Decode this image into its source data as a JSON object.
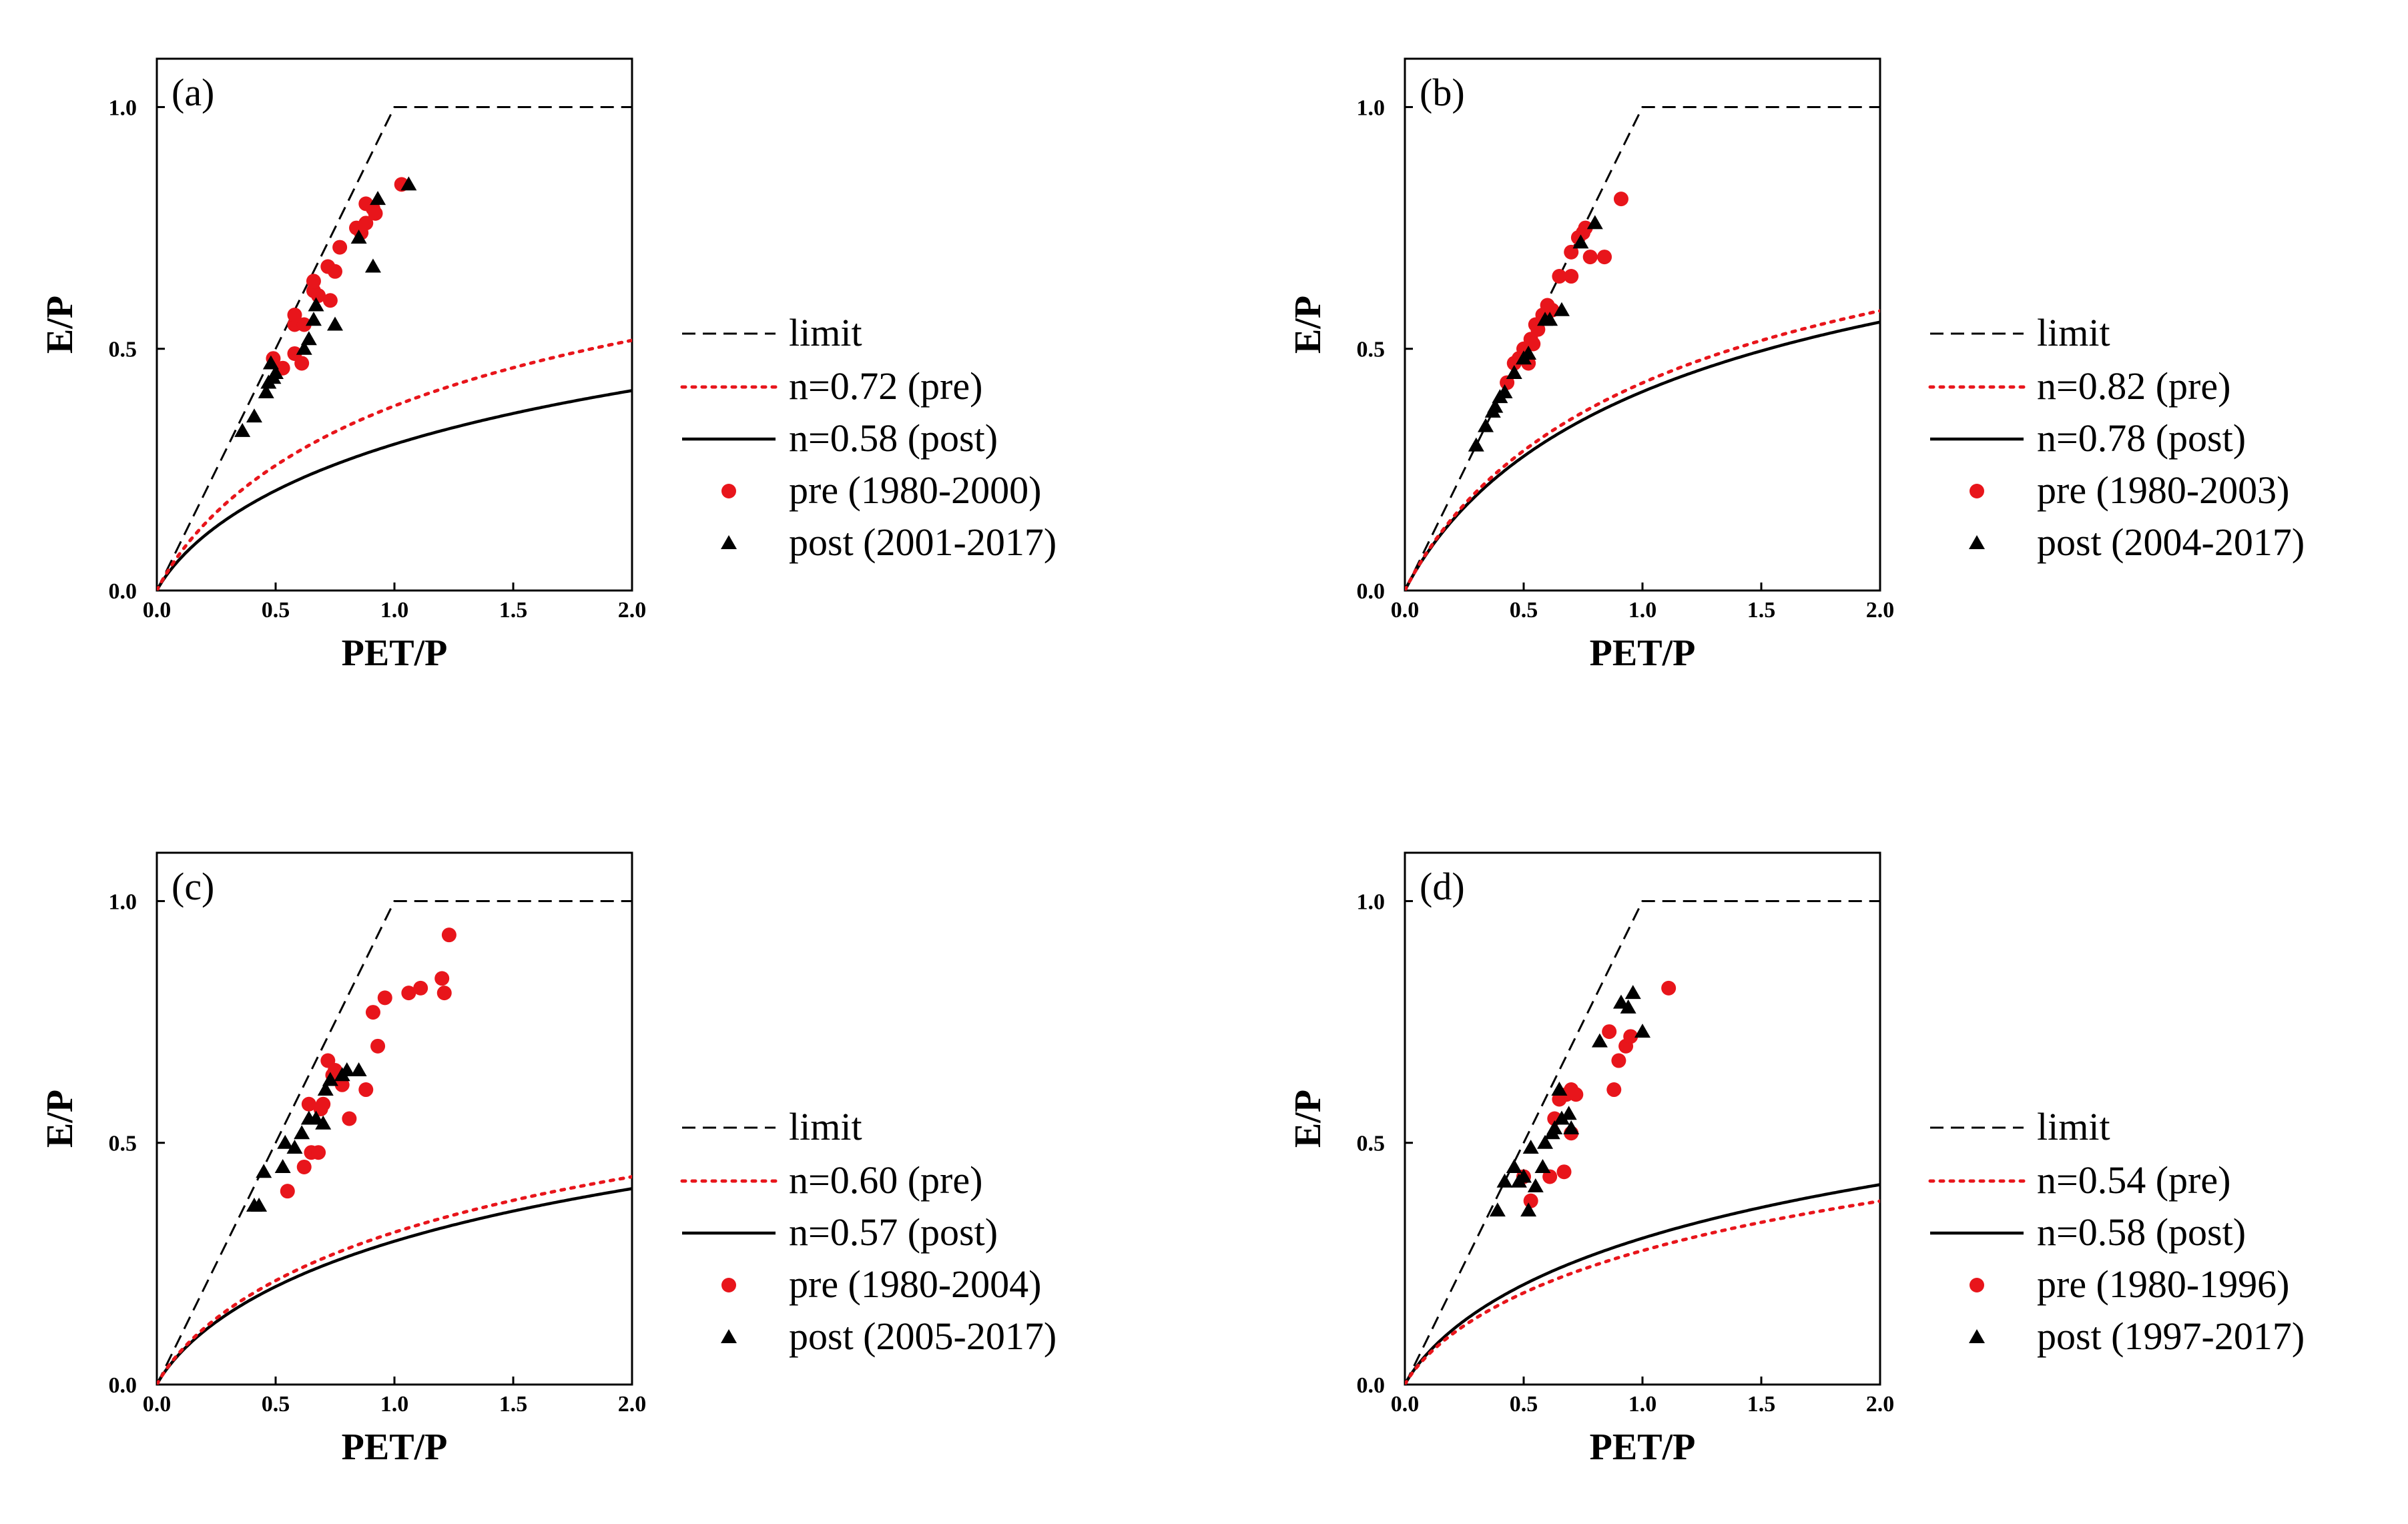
{
  "chart_data": [
    {
      "type": "scatter",
      "panel": "(a)",
      "xlabel": "PET/P",
      "ylabel": "E/P",
      "xlim": [
        0,
        2.0
      ],
      "ylim": [
        0,
        1.1
      ],
      "xticks": [
        "0.0",
        "0.5",
        "1.0",
        "1.5",
        "2.0"
      ],
      "yticks": [
        "0.0",
        "0.5",
        "1.0"
      ],
      "legend_position": "lower-right",
      "legend": {
        "limit": "limit",
        "pre_curve": "n=0.72 (pre)",
        "post_curve": "n=0.58 (post)",
        "pre_points": "pre (1980-2000)",
        "post_points": "post (2001-2017)"
      },
      "curves": {
        "pre_n": 0.72,
        "post_n": 0.58
      },
      "pre": [
        [
          0.49,
          0.48
        ],
        [
          0.53,
          0.46
        ],
        [
          0.58,
          0.55
        ],
        [
          0.58,
          0.57
        ],
        [
          0.58,
          0.49
        ],
        [
          0.61,
          0.47
        ],
        [
          0.62,
          0.55
        ],
        [
          0.66,
          0.62
        ],
        [
          0.66,
          0.64
        ],
        [
          0.68,
          0.61
        ],
        [
          0.72,
          0.67
        ],
        [
          0.73,
          0.6
        ],
        [
          0.75,
          0.66
        ],
        [
          0.77,
          0.71
        ],
        [
          0.84,
          0.75
        ],
        [
          0.86,
          0.74
        ],
        [
          0.88,
          0.76
        ],
        [
          0.88,
          0.8
        ],
        [
          0.91,
          0.79
        ],
        [
          0.92,
          0.78
        ],
        [
          1.03,
          0.84
        ]
      ],
      "post": [
        [
          0.36,
          0.33
        ],
        [
          0.41,
          0.36
        ],
        [
          0.46,
          0.41
        ],
        [
          0.47,
          0.43
        ],
        [
          0.48,
          0.47
        ],
        [
          0.49,
          0.44
        ],
        [
          0.5,
          0.45
        ],
        [
          0.62,
          0.5
        ],
        [
          0.64,
          0.52
        ],
        [
          0.66,
          0.56
        ],
        [
          0.67,
          0.59
        ],
        [
          0.75,
          0.55
        ],
        [
          0.85,
          0.73
        ],
        [
          0.91,
          0.67
        ],
        [
          0.93,
          0.81
        ],
        [
          1.06,
          0.84
        ]
      ]
    },
    {
      "type": "scatter",
      "panel": "(b)",
      "xlabel": "PET/P",
      "ylabel": "E/P",
      "xlim": [
        0,
        2.0
      ],
      "ylim": [
        0,
        1.1
      ],
      "xticks": [
        "0.0",
        "0.5",
        "1.0",
        "1.5",
        "2.0"
      ],
      "yticks": [
        "0.0",
        "0.5",
        "1.0"
      ],
      "legend_position": "lower-right",
      "legend": {
        "limit": "limit",
        "pre_curve": "n=0.82 (pre)",
        "post_curve": "n=0.78 (post)",
        "pre_points": "pre (1980-2003)",
        "post_points": "post (2004-2017)"
      },
      "curves": {
        "pre_n": 0.82,
        "post_n": 0.78
      },
      "pre": [
        [
          0.43,
          0.43
        ],
        [
          0.46,
          0.47
        ],
        [
          0.48,
          0.48
        ],
        [
          0.5,
          0.5
        ],
        [
          0.52,
          0.47
        ],
        [
          0.53,
          0.52
        ],
        [
          0.54,
          0.51
        ],
        [
          0.55,
          0.55
        ],
        [
          0.56,
          0.54
        ],
        [
          0.58,
          0.57
        ],
        [
          0.6,
          0.59
        ],
        [
          0.62,
          0.58
        ],
        [
          0.65,
          0.65
        ],
        [
          0.7,
          0.65
        ],
        [
          0.7,
          0.7
        ],
        [
          0.73,
          0.73
        ],
        [
          0.75,
          0.74
        ],
        [
          0.76,
          0.75
        ],
        [
          0.78,
          0.69
        ],
        [
          0.84,
          0.69
        ],
        [
          0.91,
          0.81
        ]
      ],
      "post": [
        [
          0.3,
          0.3
        ],
        [
          0.34,
          0.34
        ],
        [
          0.37,
          0.37
        ],
        [
          0.38,
          0.38
        ],
        [
          0.4,
          0.4
        ],
        [
          0.42,
          0.41
        ],
        [
          0.46,
          0.45
        ],
        [
          0.5,
          0.48
        ],
        [
          0.52,
          0.49
        ],
        [
          0.59,
          0.56
        ],
        [
          0.61,
          0.56
        ],
        [
          0.66,
          0.58
        ],
        [
          0.74,
          0.72
        ],
        [
          0.8,
          0.76
        ]
      ]
    },
    {
      "type": "scatter",
      "panel": "(c)",
      "xlabel": "PET/P",
      "ylabel": "E/P",
      "xlim": [
        0,
        2.0
      ],
      "ylim": [
        0,
        1.1
      ],
      "xticks": [
        "0.0",
        "0.5",
        "1.0",
        "1.5",
        "2.0"
      ],
      "yticks": [
        "0.0",
        "0.5",
        "1.0"
      ],
      "legend_position": "lower-right",
      "legend": {
        "limit": "limit",
        "pre_curve": "n=0.60 (pre)",
        "post_curve": "n=0.57 (post)",
        "pre_points": "pre (1980-2004)",
        "post_points": "post (2005-2017)"
      },
      "curves": {
        "pre_n": 0.6,
        "post_n": 0.57
      },
      "pre": [
        [
          0.55,
          0.4
        ],
        [
          0.62,
          0.45
        ],
        [
          0.64,
          0.58
        ],
        [
          0.65,
          0.48
        ],
        [
          0.68,
          0.48
        ],
        [
          0.69,
          0.57
        ],
        [
          0.7,
          0.58
        ],
        [
          0.72,
          0.67
        ],
        [
          0.74,
          0.64
        ],
        [
          0.75,
          0.65
        ],
        [
          0.78,
          0.62
        ],
        [
          0.81,
          0.55
        ],
        [
          0.88,
          0.61
        ],
        [
          0.91,
          0.77
        ],
        [
          0.93,
          0.7
        ],
        [
          0.96,
          0.8
        ],
        [
          1.06,
          0.81
        ],
        [
          1.11,
          0.82
        ],
        [
          1.2,
          0.84
        ],
        [
          1.21,
          0.81
        ],
        [
          1.23,
          0.93
        ]
      ],
      "post": [
        [
          0.41,
          0.37
        ],
        [
          0.43,
          0.37
        ],
        [
          0.45,
          0.44
        ],
        [
          0.53,
          0.45
        ],
        [
          0.54,
          0.5
        ],
        [
          0.58,
          0.49
        ],
        [
          0.61,
          0.52
        ],
        [
          0.64,
          0.55
        ],
        [
          0.67,
          0.55
        ],
        [
          0.7,
          0.54
        ],
        [
          0.71,
          0.61
        ],
        [
          0.73,
          0.63
        ],
        [
          0.78,
          0.64
        ],
        [
          0.8,
          0.65
        ],
        [
          0.85,
          0.65
        ]
      ]
    },
    {
      "type": "scatter",
      "panel": "(d)",
      "xlabel": "PET/P",
      "ylabel": "E/P",
      "xlim": [
        0,
        2.0
      ],
      "ylim": [
        0,
        1.1
      ],
      "xticks": [
        "0.0",
        "0.5",
        "1.0",
        "1.5",
        "2.0"
      ],
      "yticks": [
        "0.0",
        "0.5",
        "1.0"
      ],
      "legend_position": "lower-right",
      "legend": {
        "limit": "limit",
        "pre_curve": "n=0.54 (pre)",
        "post_curve": "n=0.58 (post)",
        "pre_points": "pre (1980-1996)",
        "post_points": "post (1997-2017)"
      },
      "curves": {
        "pre_n": 0.54,
        "post_n": 0.58
      },
      "pre": [
        [
          0.5,
          0.43
        ],
        [
          0.53,
          0.38
        ],
        [
          0.61,
          0.43
        ],
        [
          0.63,
          0.55
        ],
        [
          0.65,
          0.59
        ],
        [
          0.67,
          0.44
        ],
        [
          0.68,
          0.6
        ],
        [
          0.7,
          0.61
        ],
        [
          0.7,
          0.52
        ],
        [
          0.72,
          0.6
        ],
        [
          0.86,
          0.73
        ],
        [
          0.88,
          0.61
        ],
        [
          0.9,
          0.67
        ],
        [
          0.93,
          0.7
        ],
        [
          0.95,
          0.72
        ],
        [
          1.11,
          0.82
        ]
      ],
      "post": [
        [
          0.39,
          0.36
        ],
        [
          0.42,
          0.42
        ],
        [
          0.46,
          0.45
        ],
        [
          0.48,
          0.42
        ],
        [
          0.5,
          0.43
        ],
        [
          0.52,
          0.36
        ],
        [
          0.53,
          0.49
        ],
        [
          0.55,
          0.41
        ],
        [
          0.58,
          0.45
        ],
        [
          0.59,
          0.5
        ],
        [
          0.62,
          0.52
        ],
        [
          0.63,
          0.53
        ],
        [
          0.65,
          0.61
        ],
        [
          0.66,
          0.55
        ],
        [
          0.69,
          0.56
        ],
        [
          0.7,
          0.53
        ],
        [
          0.82,
          0.71
        ],
        [
          0.91,
          0.79
        ],
        [
          0.94,
          0.78
        ],
        [
          0.96,
          0.81
        ],
        [
          1.0,
          0.73
        ]
      ]
    }
  ]
}
